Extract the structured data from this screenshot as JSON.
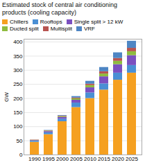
{
  "chart_data": {
    "type": "bar",
    "stacked": true,
    "title": "Estimated stock of central air conditioning products (cooling capacity)",
    "ylabel": "GW",
    "categories": [
      "1990",
      "1995",
      "2000",
      "2005",
      "2010",
      "2015",
      "2020",
      "2025"
    ],
    "series": [
      {
        "name": "Chillers",
        "color": "#F5A020",
        "values": [
          45,
          72,
          118,
          168,
          200,
          230,
          265,
          290
        ]
      },
      {
        "name": "Rooftops",
        "color": "#4A8FD4",
        "values": [
          4,
          7,
          9,
          16,
          20,
          22,
          25,
          27
        ]
      },
      {
        "name": "Single split > 12 kW",
        "color": "#7B50C0",
        "values": [
          2,
          4,
          6,
          10,
          18,
          25,
          30,
          35
        ]
      },
      {
        "name": "Ducted split",
        "color": "#8FBC3F",
        "values": [
          1,
          2,
          3,
          5,
          8,
          10,
          12,
          14
        ]
      },
      {
        "name": "Multisplit",
        "color": "#B85450",
        "values": [
          1,
          1,
          2,
          3,
          5,
          8,
          10,
          12
        ]
      },
      {
        "name": "VRF",
        "color": "#4E86C4",
        "values": [
          0,
          1,
          2,
          5,
          10,
          15,
          20,
          25
        ]
      }
    ],
    "ylim": [
      0,
      410
    ],
    "yticks": [
      0,
      50,
      100,
      150,
      200,
      250,
      300,
      350,
      400
    ],
    "grid": true,
    "legend": "upper left"
  }
}
